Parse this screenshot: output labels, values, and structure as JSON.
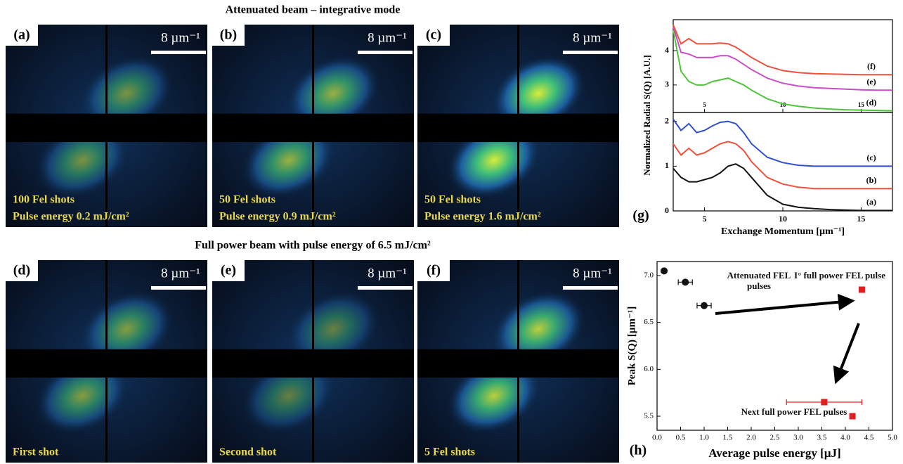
{
  "headings": [
    "Attenuated beam – integrative mode",
    "Full power beam with pulse energy of 6.5 mJ/cm²"
  ],
  "panels": [
    {
      "label": "(a)",
      "scale": "8 µm⁻¹",
      "caption": [
        "100 Fel shots",
        "Pulse energy 0.2 mJ/cm²"
      ]
    },
    {
      "label": "(b)",
      "scale": "8 µm⁻¹",
      "caption": [
        "50 Fel shots",
        "Pulse energy 0.9 mJ/cm²"
      ]
    },
    {
      "label": "(c)",
      "scale": "8 µm⁻¹",
      "caption": [
        "50 Fel shots",
        "Pulse energy 1.6 mJ/cm²"
      ]
    },
    {
      "label": "(d)",
      "scale": "8 µm⁻¹",
      "caption": [
        "First shot"
      ]
    },
    {
      "label": "(e)",
      "scale": "8 µm⁻¹",
      "caption": [
        "Second shot"
      ]
    },
    {
      "label": "(f)",
      "scale": "8 µm⁻¹",
      "caption": [
        "5 Fel shots"
      ]
    }
  ],
  "chart_data": [
    {
      "type": "line",
      "xlim": [
        3,
        17
      ],
      "xticks": [
        5,
        10,
        15
      ],
      "ylim": [
        2.2,
        4.9
      ],
      "yticks": [
        3,
        4
      ],
      "x": [
        3,
        3.5,
        4,
        4.5,
        5,
        5.5,
        6,
        6.5,
        7,
        7.5,
        8,
        9,
        10,
        11,
        12,
        13,
        14,
        15,
        16,
        17
      ],
      "series": [
        {
          "name": "(d)",
          "color": "#4fc43a",
          "values": [
            4.6,
            3.4,
            3.1,
            3.0,
            3.0,
            3.1,
            3.15,
            3.2,
            3.1,
            3.0,
            2.85,
            2.6,
            2.45,
            2.38,
            2.33,
            2.3,
            2.28,
            2.27,
            2.26,
            2.25
          ]
        },
        {
          "name": "(e)",
          "color": "#c84fc8",
          "values": [
            4.7,
            3.95,
            3.9,
            3.8,
            3.8,
            3.8,
            3.85,
            3.85,
            3.75,
            3.6,
            3.45,
            3.2,
            3.05,
            2.97,
            2.92,
            2.9,
            2.88,
            2.86,
            2.85,
            2.85
          ]
        },
        {
          "name": "(f)",
          "color": "#f0503c",
          "values": [
            4.75,
            4.2,
            4.35,
            4.2,
            4.2,
            4.2,
            4.22,
            4.2,
            4.1,
            3.95,
            3.8,
            3.55,
            3.42,
            3.36,
            3.33,
            3.32,
            3.31,
            3.3,
            3.3,
            3.3
          ]
        }
      ]
    },
    {
      "type": "line",
      "panel": "(g)",
      "xlabel": "Exchange Momentum [µm⁻¹]",
      "ylabel": "Normalized Radial S(Q) [A.U.]",
      "xlim": [
        3,
        17
      ],
      "xticks": [
        5,
        10,
        15
      ],
      "ylim": [
        0,
        2.2
      ],
      "yticks": [
        0,
        1,
        2
      ],
      "x": [
        3,
        3.5,
        4,
        4.5,
        5,
        5.5,
        6,
        6.5,
        7,
        7.5,
        8,
        9,
        10,
        11,
        12,
        13,
        14,
        15,
        16,
        17
      ],
      "series": [
        {
          "name": "(a)",
          "color": "#111111",
          "values": [
            0.95,
            0.75,
            0.65,
            0.65,
            0.7,
            0.75,
            0.85,
            1.0,
            1.05,
            0.95,
            0.75,
            0.35,
            0.15,
            0.08,
            0.05,
            0.03,
            0.02,
            0.01,
            0.01,
            0.01
          ]
        },
        {
          "name": "(b)",
          "color": "#f0503c",
          "values": [
            1.5,
            1.25,
            1.4,
            1.25,
            1.3,
            1.4,
            1.5,
            1.55,
            1.5,
            1.35,
            1.1,
            0.75,
            0.6,
            0.53,
            0.5,
            0.5,
            0.5,
            0.5,
            0.5,
            0.5
          ]
        },
        {
          "name": "(c)",
          "color": "#3050d0",
          "values": [
            2.05,
            1.8,
            1.95,
            1.75,
            1.8,
            1.9,
            1.98,
            2.0,
            1.95,
            1.75,
            1.5,
            1.2,
            1.08,
            1.02,
            1.0,
            1.0,
            1.0,
            1.0,
            1.0,
            1.0
          ]
        }
      ]
    },
    {
      "type": "scatter",
      "panel": "(h)",
      "xlabel": "Average pulse energy [µJ]",
      "ylabel": "Peak S(Q) [µm⁻¹]",
      "xlim": [
        0,
        5
      ],
      "ylim": [
        5.35,
        7.15
      ],
      "xticks": [
        {
          "value": 0,
          "label": "0.0"
        },
        0.5,
        {
          "value": 1,
          "label": "1.0"
        },
        1.5,
        {
          "value": 2,
          "label": "2.0"
        },
        2.5,
        {
          "value": 3,
          "label": "3.0"
        },
        3.5,
        {
          "value": 4,
          "label": "4.0"
        },
        4.5,
        {
          "value": 5,
          "label": "5.0"
        }
      ],
      "yticks": [
        5.5,
        {
          "value": 6,
          "label": "6.0"
        },
        6.5,
        {
          "value": 7,
          "label": "7.0"
        }
      ],
      "series": [
        {
          "name": "Attenuated FEL pulses",
          "color": "#111111",
          "x": [
            0.15,
            0.6,
            1.0
          ],
          "values": [
            7.05,
            6.93,
            6.68
          ],
          "x_errors": [
            0,
            0.15,
            0.15
          ]
        },
        {
          "name": "I° full power FEL pulse",
          "color": "#e02020",
          "x": [
            4.35
          ],
          "values": [
            6.85
          ],
          "x_errors": [
            0
          ]
        },
        {
          "name": "Next full power FEL pulses",
          "color": "#e02020",
          "x": [
            3.55,
            4.15
          ],
          "values": [
            5.65,
            5.5
          ],
          "x_errors": [
            0.8,
            0
          ]
        }
      ]
    }
  ]
}
